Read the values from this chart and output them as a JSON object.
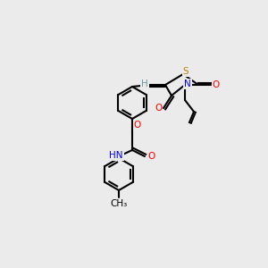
{
  "bg_color": "#ebebeb",
  "bond_color": "#000000",
  "bond_lw": 1.5,
  "atom_colors": {
    "O": "#ff0000",
    "N": "#0000ff",
    "S": "#b8860b",
    "H": "#5f9ea0",
    "C": "#000000"
  },
  "font_size": 7.5,
  "font_size_small": 6.5
}
